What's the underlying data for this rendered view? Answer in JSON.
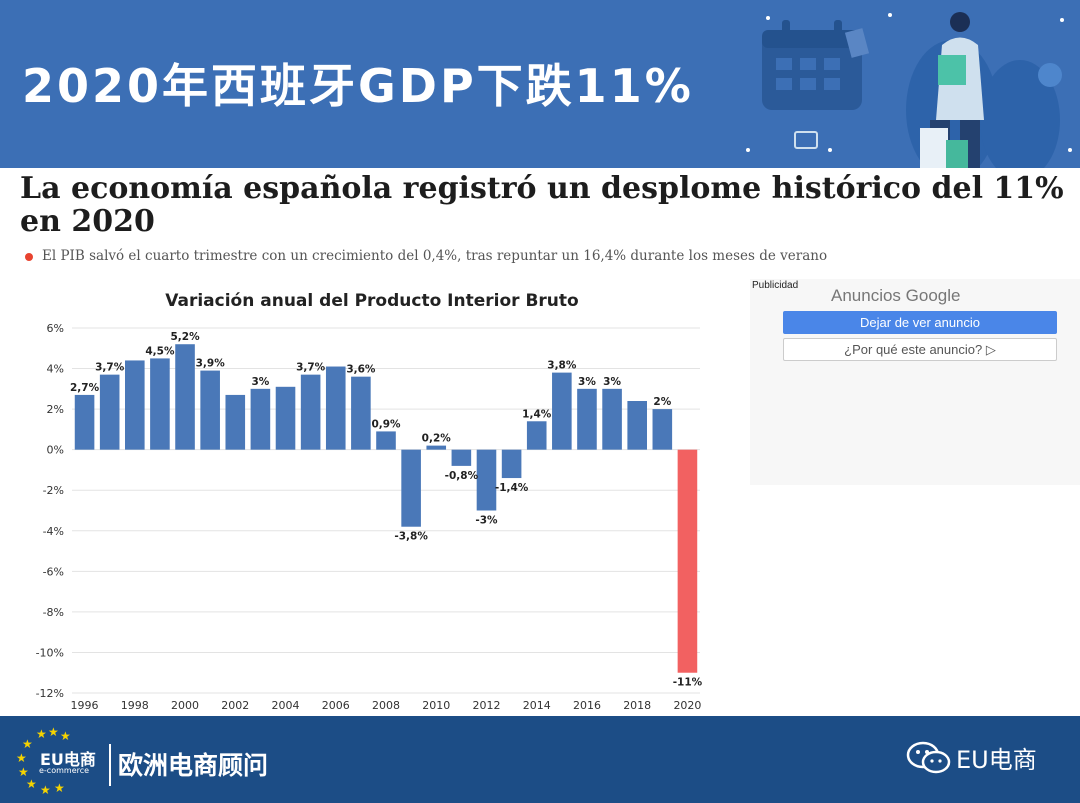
{
  "header": {
    "title": "2020年西班牙GDP下跌11%"
  },
  "article": {
    "headline": "La economía española registró un desplome histórico del 11% en 2020",
    "subhead": "El PIB salvó el cuarto trimestre con un crecimiento del 0,4%, tras repuntar un 16,4% durante los meses de verano"
  },
  "ad": {
    "publicidad": "Publicidad",
    "google": "Anuncios Google",
    "stop_label": "Dejar de ver anuncio",
    "why_label": "¿Por qué este anuncio? ▷"
  },
  "footer": {
    "logo_text": "EU电商",
    "logo_sub": "e-commerce",
    "brand": "欧洲电商顾问",
    "wechat_name": "EU电商"
  },
  "colors": {
    "bar": "#4a78b8",
    "highlight": "#f26161",
    "header": "#3c6fb5",
    "footer": "#1c4d86"
  },
  "chart_data": {
    "type": "bar",
    "title": "Variación anual del Producto Interior Bruto",
    "x": [
      1996,
      1997,
      1998,
      1999,
      2000,
      2001,
      2002,
      2003,
      2004,
      2005,
      2006,
      2007,
      2008,
      2009,
      2010,
      2011,
      2012,
      2013,
      2014,
      2015,
      2016,
      2017,
      2018,
      2019,
      2020
    ],
    "values": [
      2.7,
      3.7,
      4.4,
      4.5,
      5.2,
      3.9,
      2.7,
      3.0,
      3.1,
      3.7,
      4.1,
      3.6,
      0.9,
      -3.8,
      0.2,
      -0.8,
      -3.0,
      -1.4,
      1.4,
      3.8,
      3.0,
      3.0,
      2.4,
      2.0,
      -11.0
    ],
    "labels": [
      "2,7%",
      "3,7%",
      "",
      "4,5%",
      "5,2%",
      "3,9%",
      "",
      "3%",
      "",
      "3,7%",
      "",
      "3,6%",
      "0,9%",
      "-3,8%",
      "0,2%",
      "-0,8%",
      "-3%",
      "-1,4%",
      "1,4%",
      "3,8%",
      "3%",
      "3%",
      "",
      "2%",
      "-11%"
    ],
    "xticks": [
      "1996",
      "1998",
      "2000",
      "2002",
      "2004",
      "2006",
      "2008",
      "2010",
      "2012",
      "2014",
      "2016",
      "2018",
      "2020"
    ],
    "yticks": [
      "6%",
      "4%",
      "2%",
      "0%",
      "-2%",
      "-4%",
      "-6%",
      "-8%",
      "-10%",
      "-12%"
    ],
    "ylim": [
      -12,
      6
    ],
    "highlight_index": 24,
    "grid": true
  }
}
